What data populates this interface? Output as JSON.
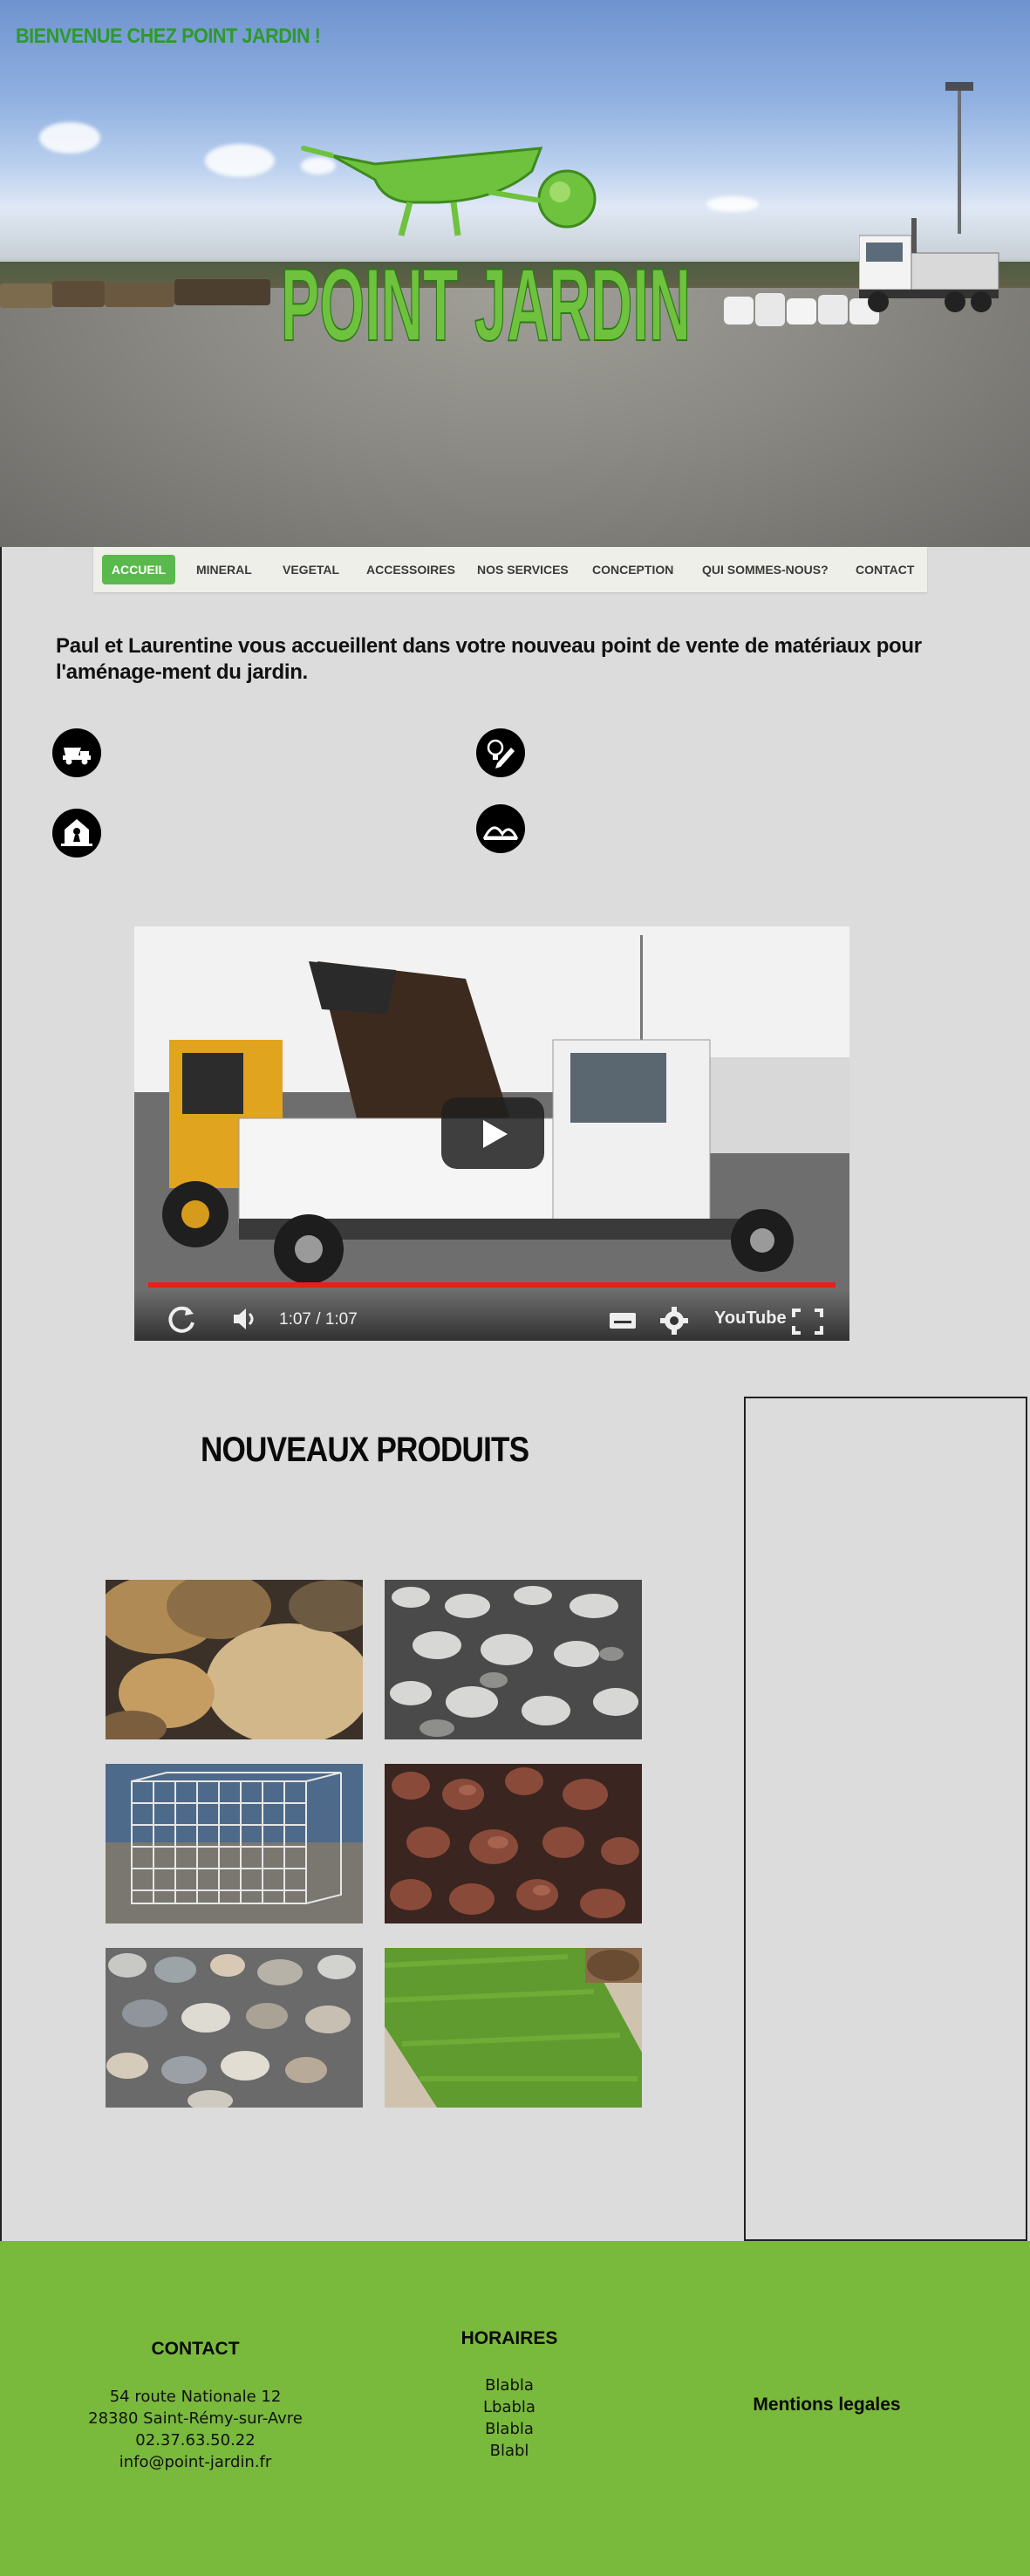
{
  "header": {
    "welcome": "BIENVENUE CHEZ POINT JARDIN !",
    "logo_text": "POINT JARDIN"
  },
  "nav": {
    "items": [
      {
        "label": "ACCUEIL",
        "active": true
      },
      {
        "label": "MINERAL"
      },
      {
        "label": "VEGETAL"
      },
      {
        "label": "ACCESSOIRES"
      },
      {
        "label": "NOS SERVICES"
      },
      {
        "label": "CONCEPTION"
      },
      {
        "label": "QUI SOMMES-NOUS?"
      },
      {
        "label": "CONTACT"
      }
    ]
  },
  "intro": {
    "text": "Paul et Laurentine vous accueillent dans votre nouveau point de vente de matériaux pour l'aménage-ment du jardin."
  },
  "features": [
    {
      "icon": "dump-truck-icon"
    },
    {
      "icon": "lightbulb-pencil-icon"
    },
    {
      "icon": "house-person-icon"
    },
    {
      "icon": "hills-icon"
    }
  ],
  "video": {
    "time": "1:07 / 1:07",
    "brand": "YouTube",
    "progress": 1.0
  },
  "products": {
    "title": "NOUVEAUX PRODUITS",
    "items": [
      {
        "name": "galets-large"
      },
      {
        "name": "galets-blancs"
      },
      {
        "name": "gabion"
      },
      {
        "name": "pouzzolane"
      },
      {
        "name": "galets-multicolores"
      },
      {
        "name": "gazon-en-rouleau"
      }
    ]
  },
  "footer": {
    "contact": {
      "title": "CONTACT",
      "address": "54 route Nationale 12",
      "city": "28380 Saint-Rémy-sur-Avre",
      "phone": "02.37.63.50.22",
      "email": "info@point-jardin.fr"
    },
    "hours": {
      "title": "HORAIRES",
      "lines": [
        "Blabla",
        "Lbabla",
        "Blabla",
        "Blabl"
      ]
    },
    "legal": "Mentions legales"
  },
  "colors": {
    "accent": "#5ab94c",
    "footer": "#79b93c",
    "logo_green": "#6fc23d",
    "welcome": "#2c9a2c"
  }
}
